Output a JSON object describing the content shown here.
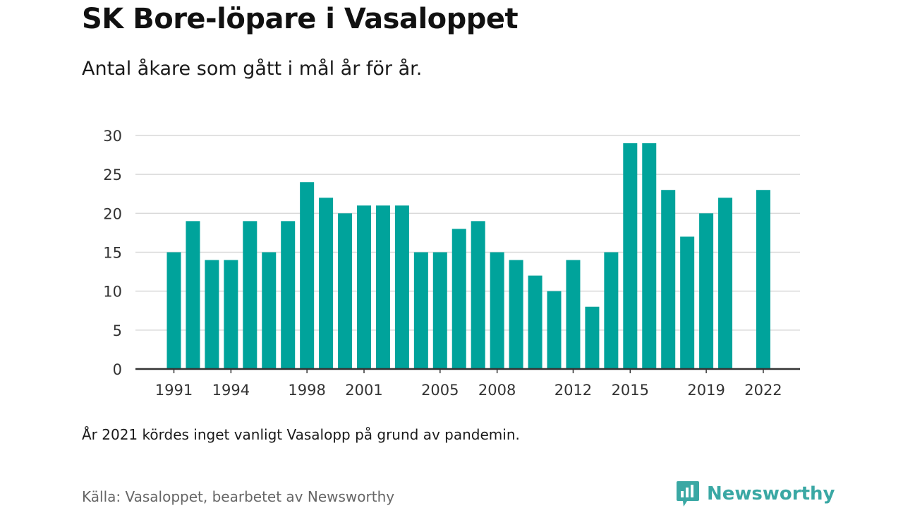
{
  "title": "SK Bore-löpare i Vasaloppet",
  "subtitle": "Antal åkare som gått i mål år för år.",
  "note": "År 2021 kördes inget vanligt Vasalopp på grund av pandemin.",
  "source": "Källa: Vasaloppet, bearbetet av Newsworthy",
  "brand": "Newsworthy",
  "colors": {
    "bar": "#00a39b",
    "grid": "#d9d9d9",
    "axis": "#333333",
    "brand": "#3aa8a4"
  },
  "chart_data": {
    "type": "bar",
    "x": [
      1991,
      1992,
      1993,
      1994,
      1995,
      1996,
      1997,
      1998,
      1999,
      2000,
      2001,
      2002,
      2003,
      2004,
      2005,
      2006,
      2007,
      2008,
      2009,
      2010,
      2011,
      2012,
      2013,
      2014,
      2015,
      2016,
      2017,
      2018,
      2019,
      2020,
      2021,
      2022
    ],
    "values": [
      15,
      19,
      14,
      14,
      19,
      15,
      19,
      24,
      22,
      20,
      21,
      21,
      21,
      15,
      15,
      18,
      19,
      15,
      14,
      12,
      10,
      14,
      8,
      15,
      29,
      29,
      23,
      17,
      20,
      22,
      null,
      23
    ],
    "x_ticks": [
      "1991",
      "1994",
      "1998",
      "2001",
      "2005",
      "2008",
      "2012",
      "2015",
      "2019",
      "2022"
    ],
    "y_ticks": [
      0,
      5,
      10,
      15,
      20,
      25,
      30
    ],
    "ylim": [
      0,
      30
    ],
    "xlabel": "",
    "ylabel": "",
    "grid": true
  }
}
